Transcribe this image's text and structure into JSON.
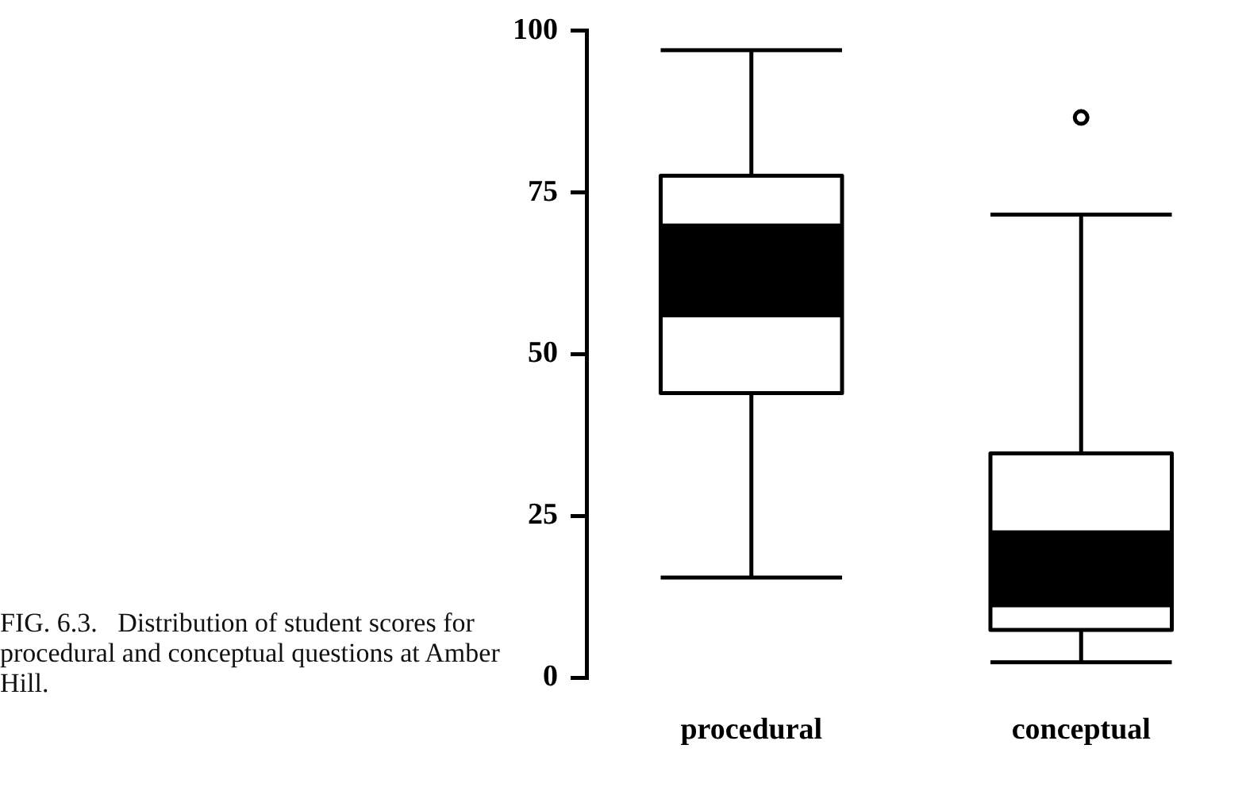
{
  "chart_data": {
    "type": "box",
    "categories": [
      "procedural",
      "conceptual"
    ],
    "series": [
      {
        "type": "box",
        "color": "#000000",
        "boxes": [
          {
            "low": 15.5,
            "q1": 44,
            "median": 63,
            "q3": 77.6,
            "high": 97
          },
          {
            "low": 2.4,
            "q1": 7.4,
            "median": 17,
            "q3": 34.7,
            "high": 71.6,
            "outliers": [
              86.6
            ]
          }
        ]
      },
      {
        "type": "bar",
        "color": "#000000",
        "base": [
          55.7,
          10.9
        ],
        "values": [
          14.5,
          11.9
        ]
      }
    ],
    "ylim": [
      0,
      100
    ],
    "yticks": [
      0,
      25,
      50,
      75,
      100
    ],
    "grid": false,
    "legend": false,
    "annotations": [
      "FIG. 6.3.   Distribution of student scores for procedural and conceptual questions at Amber Hill."
    ]
  }
}
